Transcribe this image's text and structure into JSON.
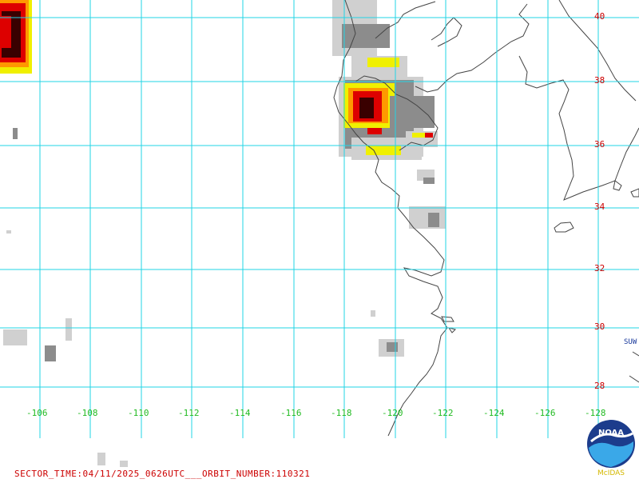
{
  "map": {
    "lat_labels": [
      "40",
      "38",
      "36",
      "34",
      "32",
      "30",
      "28"
    ],
    "lon_labels": [
      "-106",
      "-108",
      "-110",
      "-112",
      "-114",
      "-116",
      "-118",
      "-120",
      "-122",
      "-124",
      "-126",
      "-128"
    ],
    "grid_color": "#22d4e6",
    "coast_color": "#444444",
    "precip_colors": {
      "light": "#d0d0d0",
      "moderate": "#8c8c8c",
      "yellow": "#f0f000",
      "orange": "#ff9900",
      "red": "#dd0000",
      "dark": "#3a0000"
    }
  },
  "satellite_label": "SUW",
  "footer": {
    "sector_text": "SECTOR_TIME:04/11/2025_0626UTC___ORBIT_NUMBER:110321"
  },
  "logo": {
    "text": "NOAA",
    "subtitle": "McIDAS"
  }
}
